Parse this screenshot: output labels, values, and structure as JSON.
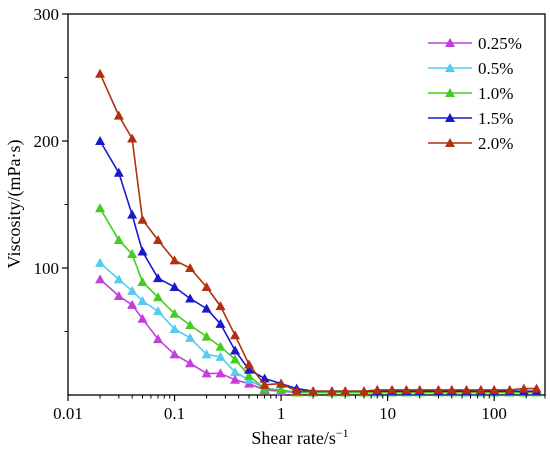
{
  "chart_data": {
    "type": "line",
    "xlabel": "Shear rate/s",
    "xlabel_sup": "−1",
    "ylabel": "Viscosity/(mPa·s)",
    "x_scale": "log",
    "xlim": [
      0.01,
      300
    ],
    "ylim": [
      0,
      300
    ],
    "x_ticks": [
      0.01,
      0.1,
      1,
      10,
      100
    ],
    "x_tick_labels": [
      "0.01",
      "0.1",
      "1",
      "10",
      "100"
    ],
    "y_ticks": [
      100,
      200,
      300
    ],
    "y_tick_labels": [
      "100",
      "200",
      "300"
    ],
    "grid": false,
    "legend_position": "top-right",
    "marker": "triangle",
    "series": [
      {
        "name": "0.25%",
        "color": "#c040d8",
        "points": [
          [
            0.02,
            91
          ],
          [
            0.03,
            78
          ],
          [
            0.04,
            71
          ],
          [
            0.05,
            60
          ],
          [
            0.07,
            44
          ],
          [
            0.1,
            32
          ],
          [
            0.14,
            25
          ],
          [
            0.2,
            17
          ],
          [
            0.27,
            17
          ],
          [
            0.37,
            12
          ],
          [
            0.5,
            9
          ],
          [
            0.7,
            4
          ],
          [
            1.0,
            3
          ],
          [
            1.4,
            2
          ],
          [
            2,
            2
          ],
          [
            3,
            2
          ],
          [
            4,
            2
          ],
          [
            6,
            2
          ],
          [
            8,
            2
          ],
          [
            11,
            2
          ],
          [
            15,
            2
          ],
          [
            20,
            2
          ],
          [
            30,
            2
          ],
          [
            40,
            2
          ],
          [
            55,
            2
          ],
          [
            75,
            2
          ],
          [
            100,
            2
          ],
          [
            140,
            2
          ],
          [
            190,
            2
          ],
          [
            250,
            2
          ]
        ]
      },
      {
        "name": "0.5%",
        "color": "#55ccee",
        "points": [
          [
            0.02,
            104
          ],
          [
            0.03,
            91
          ],
          [
            0.04,
            82
          ],
          [
            0.05,
            74
          ],
          [
            0.07,
            66
          ],
          [
            0.1,
            52
          ],
          [
            0.14,
            45
          ],
          [
            0.2,
            32
          ],
          [
            0.27,
            30
          ],
          [
            0.37,
            18
          ],
          [
            0.5,
            12
          ],
          [
            0.7,
            5
          ],
          [
            1.0,
            4
          ],
          [
            1.4,
            2
          ],
          [
            2,
            2
          ],
          [
            3,
            2
          ],
          [
            4,
            2
          ],
          [
            6,
            2
          ],
          [
            8,
            2
          ],
          [
            11,
            2
          ],
          [
            15,
            2
          ],
          [
            20,
            2
          ],
          [
            30,
            2
          ],
          [
            40,
            2
          ],
          [
            55,
            2
          ],
          [
            75,
            2
          ],
          [
            100,
            2
          ],
          [
            140,
            2
          ],
          [
            190,
            2
          ],
          [
            250,
            2
          ]
        ]
      },
      {
        "name": "1.0%",
        "color": "#44cc22",
        "points": [
          [
            0.02,
            147
          ],
          [
            0.03,
            122
          ],
          [
            0.04,
            111
          ],
          [
            0.05,
            89
          ],
          [
            0.07,
            77
          ],
          [
            0.1,
            64
          ],
          [
            0.14,
            55
          ],
          [
            0.2,
            46
          ],
          [
            0.27,
            38
          ],
          [
            0.37,
            28
          ],
          [
            0.5,
            15
          ],
          [
            0.7,
            5
          ],
          [
            1.0,
            4
          ],
          [
            1.4,
            2
          ],
          [
            2,
            2
          ],
          [
            3,
            2
          ],
          [
            4,
            2
          ],
          [
            6,
            2
          ],
          [
            8,
            2
          ],
          [
            11,
            2
          ],
          [
            15,
            2
          ],
          [
            20,
            2
          ],
          [
            30,
            2
          ],
          [
            40,
            2
          ],
          [
            55,
            2
          ],
          [
            75,
            2
          ],
          [
            100,
            2
          ],
          [
            140,
            2
          ],
          [
            190,
            2
          ],
          [
            250,
            2
          ]
        ]
      },
      {
        "name": "1.5%",
        "color": "#1a1acc",
        "points": [
          [
            0.02,
            200
          ],
          [
            0.03,
            175
          ],
          [
            0.04,
            142
          ],
          [
            0.05,
            113
          ],
          [
            0.07,
            92
          ],
          [
            0.1,
            85
          ],
          [
            0.14,
            76
          ],
          [
            0.2,
            68
          ],
          [
            0.27,
            56
          ],
          [
            0.37,
            35
          ],
          [
            0.5,
            20
          ],
          [
            0.7,
            13
          ],
          [
            1.0,
            9
          ],
          [
            1.4,
            5
          ],
          [
            2,
            3
          ],
          [
            3,
            3
          ],
          [
            4,
            3
          ],
          [
            6,
            3
          ],
          [
            8,
            3
          ],
          [
            11,
            3
          ],
          [
            15,
            3
          ],
          [
            20,
            3
          ],
          [
            30,
            3
          ],
          [
            40,
            3
          ],
          [
            55,
            3
          ],
          [
            75,
            3
          ],
          [
            100,
            3
          ],
          [
            140,
            3
          ],
          [
            190,
            3
          ],
          [
            250,
            3
          ]
        ]
      },
      {
        "name": "2.0%",
        "color": "#b03010",
        "points": [
          [
            0.02,
            253
          ],
          [
            0.03,
            220
          ],
          [
            0.04,
            202
          ],
          [
            0.05,
            138
          ],
          [
            0.07,
            122
          ],
          [
            0.1,
            106
          ],
          [
            0.14,
            100
          ],
          [
            0.2,
            85
          ],
          [
            0.27,
            70
          ],
          [
            0.37,
            47
          ],
          [
            0.5,
            24
          ],
          [
            0.7,
            8
          ],
          [
            1.0,
            9
          ],
          [
            1.4,
            3
          ],
          [
            2,
            3
          ],
          [
            3,
            3
          ],
          [
            4,
            3
          ],
          [
            6,
            3
          ],
          [
            8,
            4
          ],
          [
            11,
            4
          ],
          [
            15,
            4
          ],
          [
            20,
            4
          ],
          [
            30,
            4
          ],
          [
            40,
            4
          ],
          [
            55,
            4
          ],
          [
            75,
            4
          ],
          [
            100,
            4
          ],
          [
            140,
            4
          ],
          [
            190,
            5
          ],
          [
            250,
            5
          ]
        ]
      }
    ]
  }
}
